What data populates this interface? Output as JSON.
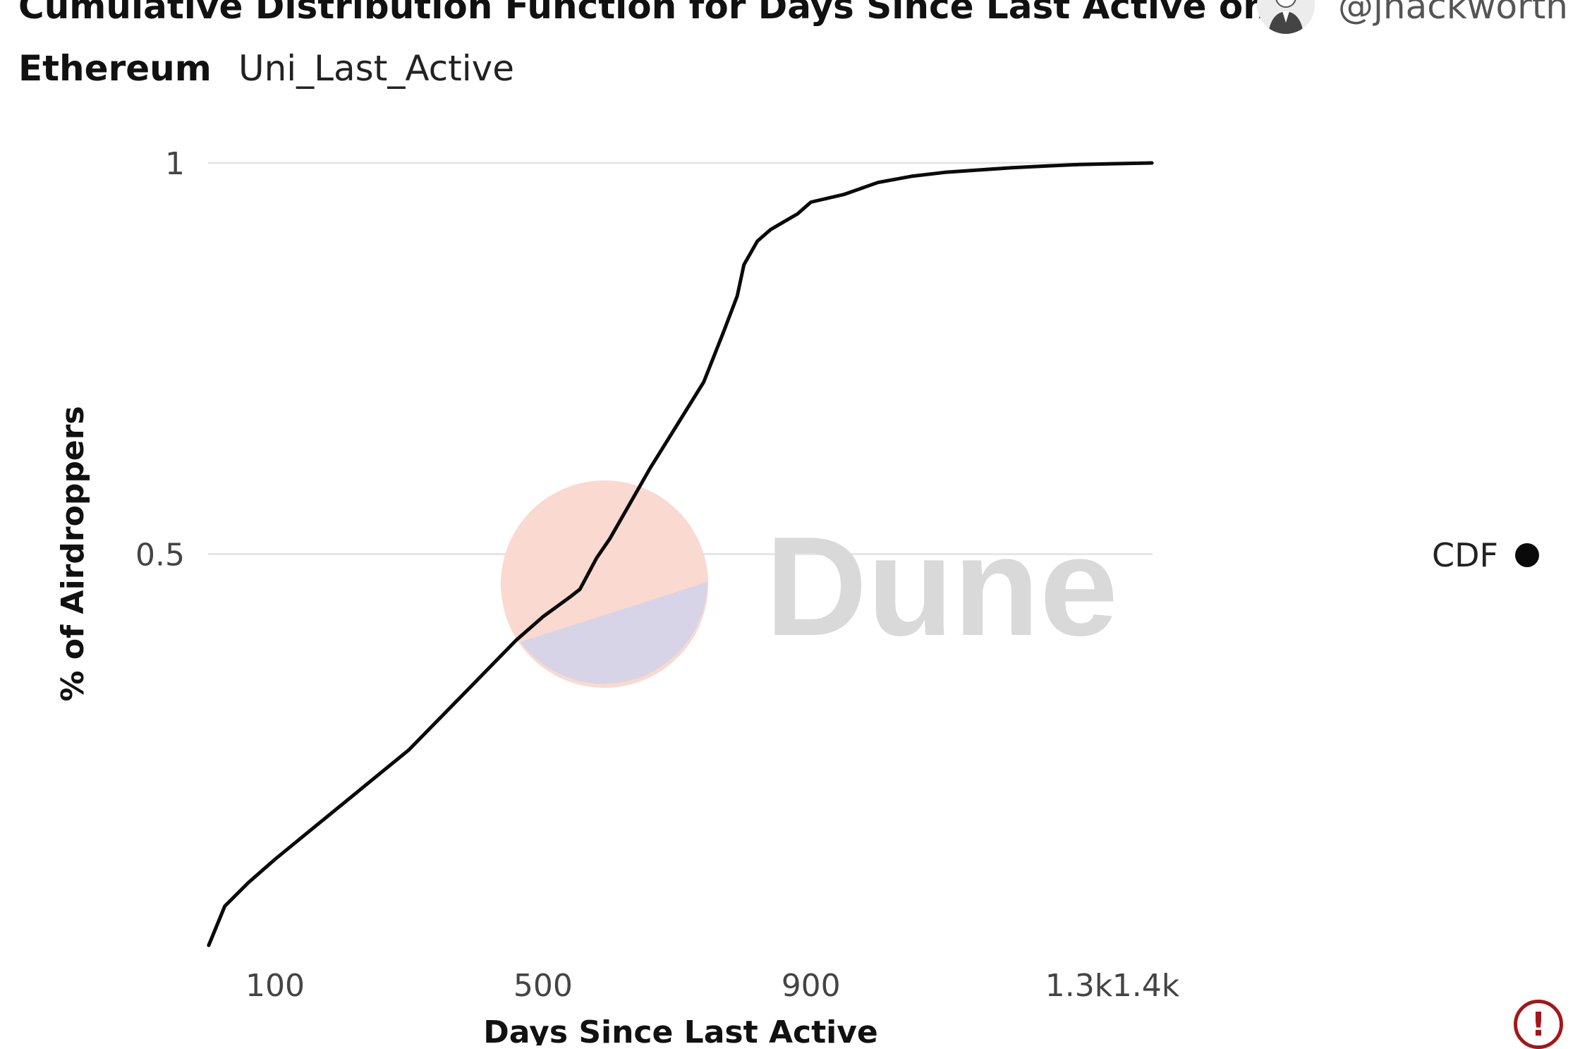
{
  "header": {
    "title_line1": "Cumulative Distribution Function for Days Since Last Active on",
    "title_line2": "Ethereum",
    "query_name": "Uni_Last_Active",
    "author": "@jhackworth"
  },
  "watermark": {
    "text": "Dune"
  },
  "colors": {
    "line": "#0a0a0a",
    "grid": "#e6e6e6",
    "watermark_red": "#f9d9d0",
    "watermark_blue": "#d6d4e6",
    "watermark_text": "#d9d9d9",
    "warning": "#a4161a"
  },
  "chart_data": {
    "type": "line",
    "title": "Cumulative Distribution Function for Days Since Last Active on Ethereum",
    "xlabel": "Days Since Last Active",
    "ylabel": "% of Airdroppers",
    "xlim": [
      0,
      1410
    ],
    "ylim": [
      0,
      1
    ],
    "x_ticks": [
      100,
      500,
      900,
      1300,
      1400
    ],
    "x_tick_labels": [
      "100",
      "500",
      "900",
      "1.3k",
      "1.4k"
    ],
    "y_ticks": [
      0.5,
      1
    ],
    "y_tick_labels": [
      "0.5",
      "1"
    ],
    "grid": true,
    "legend": {
      "position": "right",
      "entries": [
        "CDF"
      ]
    },
    "series": [
      {
        "name": "CDF",
        "x": [
          1,
          25,
          60,
          100,
          150,
          200,
          250,
          300,
          340,
          380,
          420,
          460,
          500,
          540,
          555,
          580,
          600,
          620,
          660,
          700,
          740,
          770,
          790,
          800,
          820,
          840,
          860,
          880,
          900,
          950,
          1000,
          1050,
          1100,
          1150,
          1200,
          1250,
          1300,
          1350,
          1409
        ],
        "y": [
          0.0,
          0.05,
          0.08,
          0.11,
          0.145,
          0.18,
          0.215,
          0.25,
          0.285,
          0.32,
          0.355,
          0.39,
          0.42,
          0.445,
          0.455,
          0.495,
          0.52,
          0.55,
          0.61,
          0.665,
          0.72,
          0.785,
          0.83,
          0.87,
          0.9,
          0.915,
          0.925,
          0.935,
          0.95,
          0.96,
          0.975,
          0.983,
          0.988,
          0.991,
          0.994,
          0.996,
          0.998,
          0.999,
          1.0
        ]
      }
    ]
  }
}
